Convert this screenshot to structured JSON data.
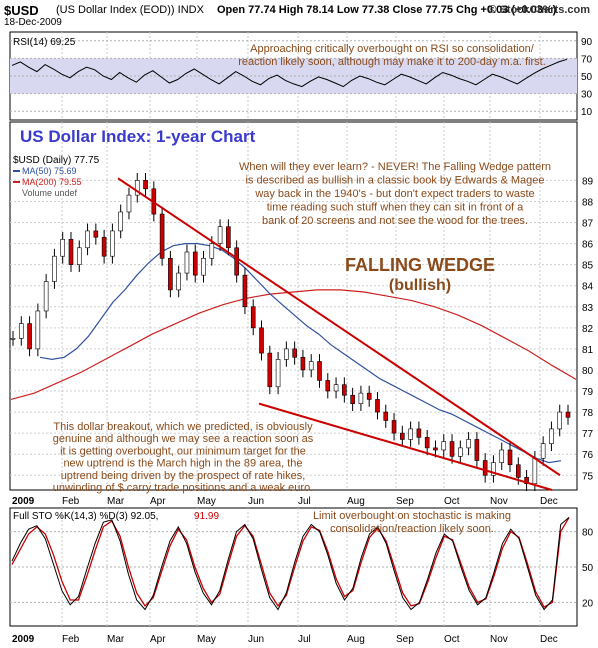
{
  "header": {
    "symbol": "$USD",
    "name": "(US Dollar Index (EOD))  INDX",
    "ohlc": "Open 77.74  High 78.14  Low 77.38  Close 77.75  Chg +0.03 (+0.03%)",
    "brand": "© StockCharts.com",
    "date": "18-Dec-2009"
  },
  "colors": {
    "accent_title": "#3a3acc",
    "annotation": "#8a4a1a",
    "wedge_line": "#cc0000",
    "ma50": "#3050a0",
    "ma200": "#cc2020",
    "price": "#000000",
    "rsi_band": "#d8d8f0"
  },
  "texts": {
    "rsi_label": "RSI(14) 69.25",
    "rsi_note_line1": "Approaching critically overbought on RSI so consolidation/",
    "rsi_note_line2": "reaction likely soon, although may make it to 200-day m.a. first.",
    "chart_title": "US Dollar Index: 1-year Chart",
    "legend_price": "$USD (Daily) 77.75",
    "legend_ma50": "MA(50) 75.69",
    "legend_ma200": "MA(200) 79.55",
    "legend_volume": "Volume undef",
    "note_top": [
      "When will they ever learn? - NEVER! The Falling Wedge pattern",
      "is described as bullish in a classic book by Edwards & Magee",
      "way back in the 1940's - but don't expect traders to waste",
      "time reading such stuff when they can sit in front of a",
      "bank of 20 screens and not see the wood for the trees."
    ],
    "wedge_title": "FALLING WEDGE",
    "wedge_sub": "(bullish)",
    "note_bottom": [
      "This dollar breakout, which we predicted, is obviously",
      "genuine and although we may see a reaction soon as",
      "it is getting overbought, our minimum target for the",
      "new uptrend is the March high in the 89 area, the",
      "uptrend being driven by the prospect of rate hikes,",
      "unwinding of $ carry trade positions and a weak euro."
    ],
    "sto_label": "Full STO %K(14,3) %D(3) 92.05,",
    "sto_value2": "91.99",
    "sto_note_line1": "Limit overbought on stochastic is making",
    "sto_note_line2": "consolidation/reaction likely soon."
  },
  "chart_data": [
    {
      "type": "line",
      "name": "RSI(14)",
      "ylim": [
        0,
        100
      ],
      "yticks": [
        "90",
        "70",
        "50",
        "30",
        "10"
      ],
      "series": [
        {
          "name": "RSI(14)",
          "values": [
            62,
            66,
            60,
            55,
            63,
            58,
            52,
            48,
            55,
            60,
            57,
            50,
            46,
            54,
            48,
            43,
            51,
            56,
            49,
            42,
            46,
            53,
            58,
            52,
            46,
            41,
            48,
            55,
            50,
            44,
            40,
            47,
            51,
            45,
            41,
            38,
            44,
            49,
            46,
            42,
            38,
            45,
            50,
            47,
            43,
            40,
            46,
            52,
            49,
            45,
            41,
            48,
            54,
            51,
            47,
            44,
            40,
            46,
            52,
            49,
            45,
            41,
            47,
            53,
            58,
            62,
            66,
            69
          ]
        }
      ]
    },
    {
      "type": "candlestick",
      "name": "$USD (Daily)",
      "ylim": [
        74.3,
        90.3
      ],
      "yticks": [
        "89",
        "88",
        "87",
        "86",
        "85",
        "84",
        "83",
        "82",
        "81",
        "80",
        "79",
        "78",
        "77",
        "76",
        "75"
      ],
      "xticks": [
        "2009",
        "Feb",
        "Mar",
        "Apr",
        "May",
        "Jun",
        "Jul",
        "Aug",
        "Sep",
        "Oct",
        "Nov",
        "Dec"
      ],
      "series": [
        {
          "name": "$USD",
          "values": [
            81.5,
            82.2,
            81.0,
            82.8,
            84.2,
            85.4,
            86.2,
            85.0,
            85.8,
            86.6,
            86.3,
            85.4,
            86.6,
            87.5,
            88.3,
            89.0,
            88.6,
            87.4,
            85.3,
            83.8,
            84.6,
            85.6,
            84.5,
            85.3,
            86.0,
            86.8,
            85.8,
            84.5,
            83.0,
            82.0,
            80.8,
            79.2,
            80.5,
            81.0,
            80.6,
            80.0,
            80.4,
            79.5,
            79.0,
            79.3,
            78.8,
            78.4,
            78.9,
            78.6,
            78.0,
            77.6,
            77.0,
            76.7,
            77.2,
            76.8,
            76.3,
            76.2,
            76.6,
            75.9,
            76.3,
            76.7,
            75.7,
            75.0,
            75.6,
            76.2,
            75.5,
            74.9,
            74.6,
            75.8,
            76.5,
            77.2,
            78.0,
            77.75
          ]
        },
        {
          "name": "MA(50)",
          "values": [
            80.6,
            80.5,
            80.6,
            81.0,
            81.6,
            82.4,
            83.2,
            83.8,
            84.5,
            85.1,
            85.6,
            85.9,
            86.0,
            86.0,
            85.9,
            85.7,
            85.3,
            84.8,
            84.2,
            83.6,
            83.1,
            82.6,
            82.1,
            81.7,
            81.2,
            80.8,
            80.4,
            80.0,
            79.6,
            79.3,
            79.0,
            78.7,
            78.4,
            78.1,
            77.9,
            77.6,
            77.3,
            77.0,
            76.7,
            76.4,
            76.1,
            75.8,
            75.6,
            75.69
          ]
        },
        {
          "name": "MA(200)",
          "values": [
            78.6,
            78.9,
            79.4,
            79.9,
            80.5,
            81.1,
            81.7,
            82.2,
            82.7,
            83.1,
            83.4,
            83.6,
            83.7,
            83.8,
            83.8,
            83.7,
            83.5,
            83.3,
            83.0,
            82.6,
            82.1,
            81.5,
            80.9,
            80.2,
            79.55
          ]
        }
      ],
      "annotations": [
        "FALLING WEDGE",
        "(bullish)"
      ]
    },
    {
      "type": "line",
      "name": "Full STO %K(14,3) %D(3)",
      "ylim": [
        0,
        100
      ],
      "yticks": [
        "80",
        "50",
        "20"
      ],
      "series": [
        {
          "name": "%K",
          "values": [
            55,
            70,
            82,
            85,
            74,
            52,
            30,
            18,
            25,
            48,
            70,
            88,
            90,
            72,
            44,
            22,
            14,
            26,
            50,
            72,
            84,
            70,
            46,
            28,
            18,
            30,
            56,
            80,
            86,
            74,
            48,
            24,
            14,
            28,
            54,
            76,
            86,
            80,
            60,
            36,
            22,
            32,
            58,
            78,
            84,
            70,
            46,
            24,
            14,
            20,
            40,
            62,
            78,
            72,
            50,
            30,
            18,
            24,
            46,
            70,
            82,
            74,
            50,
            26,
            14,
            22,
            86,
            92
          ]
        },
        {
          "name": "%D",
          "values": [
            52,
            65,
            78,
            84,
            78,
            60,
            38,
            22,
            22,
            42,
            64,
            84,
            89,
            76,
            50,
            28,
            17,
            24,
            46,
            68,
            82,
            73,
            50,
            32,
            20,
            27,
            52,
            76,
            85,
            76,
            52,
            28,
            17,
            26,
            50,
            72,
            84,
            81,
            63,
            40,
            25,
            30,
            54,
            75,
            83,
            72,
            50,
            28,
            17,
            19,
            37,
            58,
            76,
            73,
            53,
            33,
            20,
            23,
            43,
            66,
            80,
            75,
            53,
            29,
            16,
            20,
            80,
            91.99
          ]
        }
      ]
    }
  ]
}
